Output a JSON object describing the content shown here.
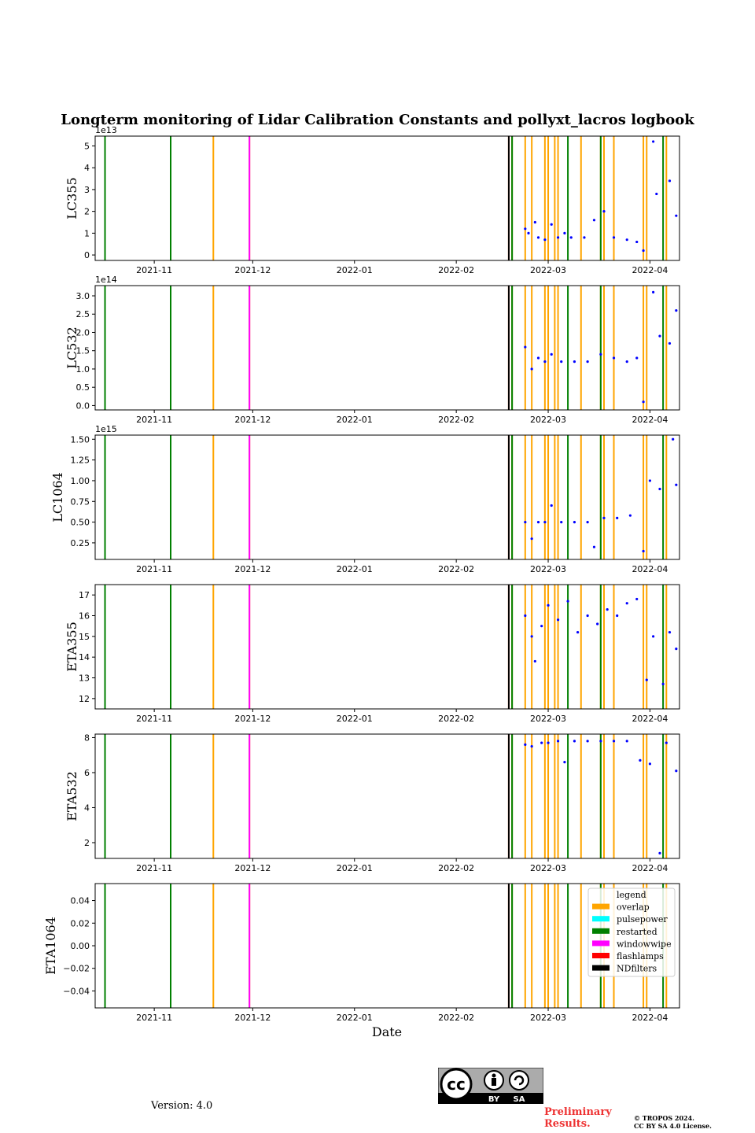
{
  "chart_data": {
    "type": "scatter",
    "title": "Longterm monitoring of Lidar Calibration Constants and pollyxt_lacros logbook",
    "xlabel": "Date",
    "x_range": [
      "2021-10-14",
      "2022-04-10"
    ],
    "x_ticks": [
      {
        "date": "2021-11-01",
        "label": "2021-11"
      },
      {
        "date": "2021-12-01",
        "label": "2021-12"
      },
      {
        "date": "2022-01-01",
        "label": "2022-01"
      },
      {
        "date": "2022-02-01",
        "label": "2022-02"
      },
      {
        "date": "2022-03-01",
        "label": "2022-03"
      },
      {
        "date": "2022-04-01",
        "label": "2022-04"
      }
    ],
    "logbook_events": [
      {
        "type": "restarted",
        "date": "2021-10-17"
      },
      {
        "type": "restarted",
        "date": "2021-11-06"
      },
      {
        "type": "overlap",
        "date": "2021-11-19"
      },
      {
        "type": "overlap",
        "date": "2021-11-30"
      },
      {
        "type": "windowwipe",
        "date": "2021-11-30"
      },
      {
        "type": "overlap",
        "date": "2022-02-17"
      },
      {
        "type": "flashlamps",
        "date": "2022-02-17"
      },
      {
        "type": "NDfilters",
        "date": "2022-02-17"
      },
      {
        "type": "overlap",
        "date": "2022-02-18"
      },
      {
        "type": "restarted",
        "date": "2022-02-18"
      },
      {
        "type": "overlap",
        "date": "2022-02-22"
      },
      {
        "type": "overlap",
        "date": "2022-02-24"
      },
      {
        "type": "overlap",
        "date": "2022-02-28"
      },
      {
        "type": "overlap",
        "date": "2022-03-01"
      },
      {
        "type": "overlap",
        "date": "2022-03-03"
      },
      {
        "type": "overlap",
        "date": "2022-03-04"
      },
      {
        "type": "restarted",
        "date": "2022-03-07"
      },
      {
        "type": "overlap",
        "date": "2022-03-11"
      },
      {
        "type": "overlap",
        "date": "2022-03-17"
      },
      {
        "type": "restarted",
        "date": "2022-03-17"
      },
      {
        "type": "overlap",
        "date": "2022-03-18"
      },
      {
        "type": "overlap",
        "date": "2022-03-21"
      },
      {
        "type": "overlap",
        "date": "2022-03-30"
      },
      {
        "type": "overlap",
        "date": "2022-03-31"
      },
      {
        "type": "restarted",
        "date": "2022-04-05"
      },
      {
        "type": "overlap",
        "date": "2022-04-06"
      }
    ],
    "legend": {
      "title": "legend",
      "placement": "top-right of last panel",
      "items": [
        {
          "label": "overlap",
          "color": "#ffa500"
        },
        {
          "label": "pulsepower",
          "color": "#00ffff"
        },
        {
          "label": "restarted",
          "color": "#008000"
        },
        {
          "label": "windowwipe",
          "color": "#ff00ff"
        },
        {
          "label": "flashlamps",
          "color": "#ff0000"
        },
        {
          "label": "NDfilters",
          "color": "#000000"
        }
      ]
    },
    "panels": [
      {
        "ylabel": "LC355",
        "multiplier": "1e13",
        "ylim": [
          -0.25,
          5.45
        ],
        "yticks": [
          0,
          1,
          2,
          3,
          4,
          5
        ],
        "ytick_labels": [
          "0",
          "1",
          "2",
          "3",
          "4",
          "5"
        ],
        "points": [
          {
            "date": "2022-02-22",
            "y": 1.2
          },
          {
            "date": "2022-02-23",
            "y": 1.0
          },
          {
            "date": "2022-02-25",
            "y": 1.5
          },
          {
            "date": "2022-02-26",
            "y": 0.8
          },
          {
            "date": "2022-02-28",
            "y": 0.7
          },
          {
            "date": "2022-03-02",
            "y": 1.4
          },
          {
            "date": "2022-03-04",
            "y": 0.8
          },
          {
            "date": "2022-03-06",
            "y": 1.0
          },
          {
            "date": "2022-03-08",
            "y": 0.8
          },
          {
            "date": "2022-03-12",
            "y": 0.8
          },
          {
            "date": "2022-03-15",
            "y": 1.6
          },
          {
            "date": "2022-03-18",
            "y": 2.0
          },
          {
            "date": "2022-03-21",
            "y": 0.8
          },
          {
            "date": "2022-03-25",
            "y": 0.7
          },
          {
            "date": "2022-03-28",
            "y": 0.6
          },
          {
            "date": "2022-03-30",
            "y": 0.2
          },
          {
            "date": "2022-04-02",
            "y": 5.2
          },
          {
            "date": "2022-04-03",
            "y": 2.8
          },
          {
            "date": "2022-04-07",
            "y": 3.4
          },
          {
            "date": "2022-04-09",
            "y": 1.8
          }
        ]
      },
      {
        "ylabel": "LC532",
        "multiplier": "1e14",
        "ylim": [
          -0.12,
          3.28
        ],
        "yticks": [
          0,
          0.5,
          1,
          1.5,
          2,
          2.5,
          3
        ],
        "ytick_labels": [
          "0.0",
          "0.5",
          "1.0",
          "1.5",
          "2.0",
          "2.5",
          "3.0"
        ],
        "points": [
          {
            "date": "2022-02-22",
            "y": 1.6
          },
          {
            "date": "2022-02-24",
            "y": 1.0
          },
          {
            "date": "2022-02-26",
            "y": 1.3
          },
          {
            "date": "2022-02-28",
            "y": 1.2
          },
          {
            "date": "2022-03-02",
            "y": 1.4
          },
          {
            "date": "2022-03-05",
            "y": 1.2
          },
          {
            "date": "2022-03-09",
            "y": 1.2
          },
          {
            "date": "2022-03-13",
            "y": 1.2
          },
          {
            "date": "2022-03-17",
            "y": 1.4
          },
          {
            "date": "2022-03-21",
            "y": 1.3
          },
          {
            "date": "2022-03-25",
            "y": 1.2
          },
          {
            "date": "2022-03-28",
            "y": 1.3
          },
          {
            "date": "2022-03-30",
            "y": 0.1
          },
          {
            "date": "2022-04-02",
            "y": 3.1
          },
          {
            "date": "2022-04-04",
            "y": 1.9
          },
          {
            "date": "2022-04-07",
            "y": 1.7
          },
          {
            "date": "2022-04-09",
            "y": 2.6
          }
        ]
      },
      {
        "ylabel": "LC1064",
        "multiplier": "1e15",
        "ylim": [
          0.05,
          1.55
        ],
        "yticks": [
          0.25,
          0.5,
          0.75,
          1.0,
          1.25,
          1.5
        ],
        "ytick_labels": [
          "0.25",
          "0.50",
          "0.75",
          "1.00",
          "1.25",
          "1.50"
        ],
        "points": [
          {
            "date": "2022-02-22",
            "y": 0.5
          },
          {
            "date": "2022-02-24",
            "y": 0.3
          },
          {
            "date": "2022-02-26",
            "y": 0.5
          },
          {
            "date": "2022-02-28",
            "y": 0.5
          },
          {
            "date": "2022-03-02",
            "y": 0.7
          },
          {
            "date": "2022-03-05",
            "y": 0.5
          },
          {
            "date": "2022-03-09",
            "y": 0.5
          },
          {
            "date": "2022-03-13",
            "y": 0.5
          },
          {
            "date": "2022-03-15",
            "y": 0.2
          },
          {
            "date": "2022-03-18",
            "y": 0.55
          },
          {
            "date": "2022-03-22",
            "y": 0.55
          },
          {
            "date": "2022-03-26",
            "y": 0.58
          },
          {
            "date": "2022-03-30",
            "y": 0.15
          },
          {
            "date": "2022-04-01",
            "y": 1.0
          },
          {
            "date": "2022-04-04",
            "y": 0.9
          },
          {
            "date": "2022-04-08",
            "y": 1.5
          },
          {
            "date": "2022-04-09",
            "y": 0.95
          }
        ]
      },
      {
        "ylabel": "ETA355",
        "multiplier": "",
        "ylim": [
          11.5,
          17.5
        ],
        "yticks": [
          12,
          13,
          14,
          15,
          16,
          17
        ],
        "ytick_labels": [
          "12",
          "13",
          "14",
          "15",
          "16",
          "17"
        ],
        "points": [
          {
            "date": "2022-02-22",
            "y": 16.0
          },
          {
            "date": "2022-02-24",
            "y": 15.0
          },
          {
            "date": "2022-02-25",
            "y": 13.8
          },
          {
            "date": "2022-02-27",
            "y": 15.5
          },
          {
            "date": "2022-03-01",
            "y": 16.5
          },
          {
            "date": "2022-03-04",
            "y": 15.8
          },
          {
            "date": "2022-03-07",
            "y": 16.7
          },
          {
            "date": "2022-03-10",
            "y": 15.2
          },
          {
            "date": "2022-03-13",
            "y": 16.0
          },
          {
            "date": "2022-03-16",
            "y": 15.6
          },
          {
            "date": "2022-03-19",
            "y": 16.3
          },
          {
            "date": "2022-03-22",
            "y": 16.0
          },
          {
            "date": "2022-03-25",
            "y": 16.6
          },
          {
            "date": "2022-03-28",
            "y": 16.8
          },
          {
            "date": "2022-03-31",
            "y": 12.9
          },
          {
            "date": "2022-04-02",
            "y": 15.0
          },
          {
            "date": "2022-04-05",
            "y": 12.7
          },
          {
            "date": "2022-04-07",
            "y": 15.2
          },
          {
            "date": "2022-04-09",
            "y": 14.4
          }
        ]
      },
      {
        "ylabel": "ETA532",
        "multiplier": "",
        "ylim": [
          1.1,
          8.2
        ],
        "yticks": [
          2,
          4,
          6,
          8
        ],
        "ytick_labels": [
          "2",
          "4",
          "6",
          "8"
        ],
        "points": [
          {
            "date": "2022-02-22",
            "y": 7.6
          },
          {
            "date": "2022-02-24",
            "y": 7.5
          },
          {
            "date": "2022-02-27",
            "y": 7.7
          },
          {
            "date": "2022-03-01",
            "y": 7.7
          },
          {
            "date": "2022-03-04",
            "y": 7.8
          },
          {
            "date": "2022-03-06",
            "y": 6.6
          },
          {
            "date": "2022-03-09",
            "y": 7.8
          },
          {
            "date": "2022-03-13",
            "y": 7.8
          },
          {
            "date": "2022-03-17",
            "y": 7.8
          },
          {
            "date": "2022-03-21",
            "y": 7.8
          },
          {
            "date": "2022-03-25",
            "y": 7.8
          },
          {
            "date": "2022-03-29",
            "y": 6.7
          },
          {
            "date": "2022-04-01",
            "y": 6.5
          },
          {
            "date": "2022-04-04",
            "y": 1.4
          },
          {
            "date": "2022-04-06",
            "y": 7.7
          },
          {
            "date": "2022-04-09",
            "y": 6.1
          }
        ]
      },
      {
        "ylabel": "ETA1064",
        "multiplier": "",
        "ylim": [
          -0.055,
          0.055
        ],
        "yticks": [
          -0.04,
          -0.02,
          0.0,
          0.02,
          0.04
        ],
        "ytick_labels": [
          "−0.04",
          "−0.02",
          "0.00",
          "0.02",
          "0.04"
        ],
        "points": []
      }
    ]
  },
  "footer": {
    "version": "Version: 4.0",
    "cc_badge_text": "cc",
    "cc_by": "BY",
    "cc_sa": "SA",
    "preliminary_line1": "Preliminary",
    "preliminary_line2": "Results.",
    "copyright_line1": "© TROPOS 2024.",
    "copyright_line2": "CC BY SA 4.0 License."
  }
}
